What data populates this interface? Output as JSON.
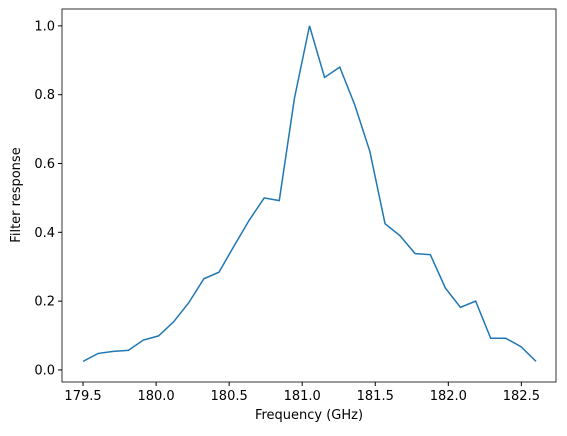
{
  "chart_data": {
    "type": "line",
    "xlabel": "Frequency (GHz)",
    "ylabel": "Filter response",
    "x": [
      179.5,
      179.603,
      179.707,
      179.81,
      179.913,
      180.017,
      180.12,
      180.223,
      180.327,
      180.43,
      180.533,
      180.637,
      180.74,
      180.843,
      180.947,
      181.05,
      181.153,
      181.257,
      181.36,
      181.463,
      181.567,
      181.67,
      181.773,
      181.877,
      181.98,
      182.083,
      182.187,
      182.29,
      182.393,
      182.497,
      182.6
    ],
    "series": [
      {
        "name": "response",
        "color": "#1f77b4",
        "values": [
          0.025,
          0.048,
          0.054,
          0.057,
          0.087,
          0.099,
          0.14,
          0.195,
          0.265,
          0.284,
          0.36,
          0.435,
          0.5,
          0.492,
          0.79,
          1.0,
          0.85,
          0.88,
          0.77,
          0.635,
          0.425,
          0.39,
          0.338,
          0.335,
          0.238,
          0.182,
          0.2,
          0.092,
          0.092,
          0.068,
          0.025
        ]
      }
    ],
    "xlim": [
      179.356,
      182.737
    ],
    "ylim": [
      -0.035,
      1.049
    ],
    "xticks": [
      {
        "value": 179.5,
        "label": "179.5"
      },
      {
        "value": 180.0,
        "label": "180.0"
      },
      {
        "value": 180.5,
        "label": "180.5"
      },
      {
        "value": 181.0,
        "label": "181.0"
      },
      {
        "value": 181.5,
        "label": "181.5"
      },
      {
        "value": 182.0,
        "label": "182.0"
      },
      {
        "value": 182.5,
        "label": "182.5"
      }
    ],
    "yticks": [
      {
        "value": 0,
        "label": "0.0"
      },
      {
        "value": 0.2,
        "label": "0.2"
      },
      {
        "value": 0.4,
        "label": "0.4"
      },
      {
        "value": 0.6,
        "label": "0.6"
      },
      {
        "value": 0.8,
        "label": "0.8"
      },
      {
        "value": 1.0,
        "label": "1.0"
      }
    ]
  }
}
